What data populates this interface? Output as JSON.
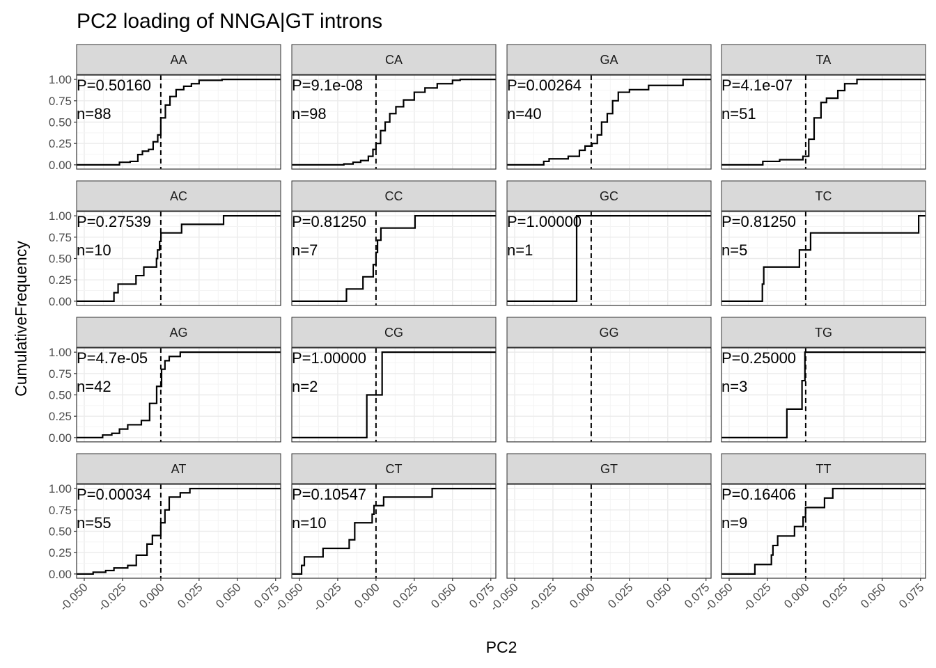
{
  "chart_data": {
    "type": "line",
    "subtype": "faceted-ecdf-step",
    "title": "PC2 loading of NNGA|GT introns",
    "xlabel": "PC2",
    "ylabel": "CumulativeFrequency",
    "xlim": [
      -0.055,
      0.0783
    ],
    "ylim": [
      -0.05,
      1.05
    ],
    "x_ticks": [
      -0.05,
      -0.025,
      0,
      0.025,
      0.05,
      0.075
    ],
    "x_tick_labels": [
      "-0.050",
      "-0.025",
      "0.000",
      "0.025",
      "0.050",
      "0.075"
    ],
    "y_ticks": [
      0,
      0.25,
      0.5,
      0.75,
      1
    ],
    "y_tick_labels": [
      "0.00",
      "0.25",
      "0.50",
      "0.75",
      "1.00"
    ],
    "reference_line_x": 0,
    "grid": true,
    "panels": [
      {
        "label": "AA",
        "p": "P=0.50160",
        "n": "n=88",
        "ecdf": [
          [
            -0.055,
            0
          ],
          [
            -0.027,
            0.03
          ],
          [
            -0.02,
            0.04
          ],
          [
            -0.015,
            0.12
          ],
          [
            -0.012,
            0.16
          ],
          [
            -0.008,
            0.18
          ],
          [
            -0.005,
            0.27
          ],
          [
            -0.002,
            0.35
          ],
          [
            0,
            0.55
          ],
          [
            0.003,
            0.7
          ],
          [
            0.006,
            0.8
          ],
          [
            0.01,
            0.88
          ],
          [
            0.015,
            0.92
          ],
          [
            0.02,
            0.95
          ],
          [
            0.025,
            0.99
          ],
          [
            0.04,
            1
          ]
        ]
      },
      {
        "label": "CA",
        "p": "P=9.1e-08",
        "n": "n=98",
        "ecdf": [
          [
            -0.055,
            0
          ],
          [
            -0.021,
            0.01
          ],
          [
            -0.015,
            0.03
          ],
          [
            -0.01,
            0.05
          ],
          [
            -0.005,
            0.1
          ],
          [
            -0.002,
            0.18
          ],
          [
            0,
            0.25
          ],
          [
            0.003,
            0.4
          ],
          [
            0.006,
            0.5
          ],
          [
            0.009,
            0.6
          ],
          [
            0.013,
            0.68
          ],
          [
            0.018,
            0.76
          ],
          [
            0.025,
            0.85
          ],
          [
            0.032,
            0.9
          ],
          [
            0.04,
            0.95
          ],
          [
            0.05,
            0.99
          ],
          [
            0.055,
            1
          ]
        ]
      },
      {
        "label": "GA",
        "p": "P=0.00264",
        "n": "n=40",
        "ecdf": [
          [
            -0.055,
            0
          ],
          [
            -0.031,
            0.04
          ],
          [
            -0.0275,
            0.07
          ],
          [
            -0.015,
            0.1
          ],
          [
            -0.0077,
            0.17
          ],
          [
            -0.004,
            0.22
          ],
          [
            0.0005,
            0.25
          ],
          [
            0.004,
            0.35
          ],
          [
            0.0068,
            0.5
          ],
          [
            0.0105,
            0.6
          ],
          [
            0.014,
            0.75
          ],
          [
            0.0177,
            0.85
          ],
          [
            0.025,
            0.88
          ],
          [
            0.0375,
            0.93
          ],
          [
            0.06,
            1
          ]
        ]
      },
      {
        "label": "TA",
        "p": "P=4.1e-07",
        "n": "n=51",
        "ecdf": [
          [
            -0.055,
            0
          ],
          [
            -0.028,
            0.04
          ],
          [
            -0.017,
            0.06
          ],
          [
            -0.0018,
            0.1
          ],
          [
            0.002,
            0.3
          ],
          [
            0.0055,
            0.55
          ],
          [
            0.01,
            0.73
          ],
          [
            0.0136,
            0.78
          ],
          [
            0.021,
            0.87
          ],
          [
            0.0255,
            0.95
          ],
          [
            0.0335,
            1
          ]
        ]
      },
      {
        "label": "AC",
        "p": "P=0.27539",
        "n": "n=10",
        "values": [
          -0.0306,
          -0.0279,
          -0.0162,
          -0.0111,
          -0.0028,
          -0.0021,
          -0.0008,
          0.0001,
          0.0136,
          0.041
        ]
      },
      {
        "label": "CC",
        "p": "P=0.81250",
        "n": "n=7",
        "values": [
          -0.0193,
          -0.0085,
          -0.0018,
          0.0,
          0.001,
          0.0032,
          0.0255
        ]
      },
      {
        "label": "GC",
        "p": "P=1.00000",
        "n": "n=1",
        "values": [
          -0.0095
        ]
      },
      {
        "label": "TC",
        "p": "P=0.81250",
        "n": "n=5",
        "values": [
          -0.0283,
          -0.0274,
          -0.0041,
          0.0032,
          0.0738
        ]
      },
      {
        "label": "AG",
        "p": "P=4.7e-05",
        "n": "n=42",
        "ecdf": [
          [
            -0.055,
            0
          ],
          [
            -0.038,
            0.03
          ],
          [
            -0.032,
            0.05
          ],
          [
            -0.027,
            0.1
          ],
          [
            -0.0216,
            0.15
          ],
          [
            -0.0127,
            0.2
          ],
          [
            -0.0073,
            0.4
          ],
          [
            -0.0027,
            0.6
          ],
          [
            0.0005,
            0.8
          ],
          [
            0.0027,
            0.9
          ],
          [
            0.0055,
            0.95
          ],
          [
            0.0127,
            1
          ]
        ]
      },
      {
        "label": "CG",
        "p": "P=1.00000",
        "n": "n=2",
        "values": [
          -0.006,
          0.004
        ]
      },
      {
        "label": "GG"
      },
      {
        "label": "TG",
        "p": "P=0.25000",
        "n": "n=3",
        "values": [
          -0.0123,
          -0.0024,
          -0.0005
        ]
      },
      {
        "label": "AT",
        "p": "P=0.00034",
        "n": "n=55",
        "ecdf": [
          [
            -0.055,
            0
          ],
          [
            -0.0442,
            0.02
          ],
          [
            -0.036,
            0.04
          ],
          [
            -0.0306,
            0.07
          ],
          [
            -0.0216,
            0.1
          ],
          [
            -0.016,
            0.22
          ],
          [
            -0.009,
            0.35
          ],
          [
            -0.0055,
            0.45
          ],
          [
            0,
            0.6
          ],
          [
            0.0027,
            0.75
          ],
          [
            0.0055,
            0.9
          ],
          [
            0.0127,
            0.95
          ],
          [
            0.019,
            1
          ]
        ]
      },
      {
        "label": "CT",
        "p": "P=0.10547",
        "n": "n=10",
        "values": [
          -0.0486,
          -0.0468,
          -0.0346,
          -0.0175,
          -0.0139,
          -0.0139,
          -0.0025,
          -0.0013,
          0.005,
          0.0367
        ]
      },
      {
        "label": "GT"
      },
      {
        "label": "TT",
        "p": "P=0.16406",
        "n": "n=9",
        "values": [
          -0.0332,
          -0.0224,
          -0.0214,
          -0.0183,
          -0.0073,
          -0.0017,
          -0.0001,
          0.0123,
          0.0177
        ]
      }
    ]
  }
}
